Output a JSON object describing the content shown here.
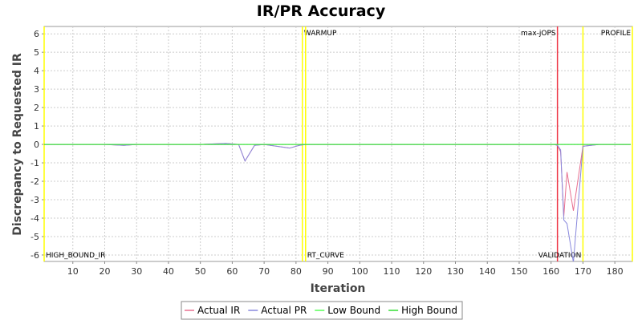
{
  "chart_data": {
    "type": "line",
    "title": "IR/PR Accuracy",
    "x_label": "Iteration",
    "y_label": "Discrepancy to Requested IR",
    "x": [
      1,
      10,
      20,
      26,
      30,
      40,
      50,
      58,
      62,
      64,
      67,
      70,
      78,
      81,
      83,
      100,
      140,
      161,
      162,
      163,
      164,
      165,
      167,
      170,
      175,
      185
    ],
    "series": [
      {
        "name": "Actual IR",
        "color": "#e87090",
        "values": [
          0,
          0,
          0,
          -0.05,
          0,
          0,
          0,
          0.05,
          0,
          -0.9,
          -0.05,
          0,
          -0.2,
          -0.05,
          0,
          0,
          0,
          0,
          -0.05,
          -0.4,
          -3.9,
          -1.5,
          -3.6,
          -0.1,
          0,
          0
        ]
      },
      {
        "name": "Actual PR",
        "color": "#8888dd",
        "values": [
          0,
          0,
          0,
          -0.05,
          0,
          0,
          0,
          0.05,
          0,
          -0.9,
          -0.05,
          0,
          -0.2,
          -0.05,
          0,
          0,
          0,
          0,
          -0.05,
          -0.3,
          -4.1,
          -4.3,
          -6.4,
          -0.1,
          0,
          0
        ]
      },
      {
        "name": "Low Bound",
        "color": "#55ff55",
        "values": [
          0,
          0,
          0,
          0,
          0,
          0,
          0,
          0,
          0,
          0,
          0,
          0,
          0,
          0,
          0,
          0,
          0,
          0,
          0,
          0,
          0,
          0,
          0,
          0,
          0,
          0
        ]
      },
      {
        "name": "High Bound",
        "color": "#33dd33",
        "values": [
          0,
          0,
          0,
          0,
          0,
          0,
          0,
          0,
          0,
          0,
          0,
          0,
          0,
          0,
          0,
          0,
          0,
          0,
          0,
          0,
          0,
          0,
          0,
          0,
          0,
          0
        ]
      }
    ],
    "markers": [
      {
        "x": 1,
        "color": "#ffff00",
        "label": "HIGH_BOUND_IR",
        "position": "bottom",
        "anchor": "start"
      },
      {
        "x": 82,
        "color": "#ffff00",
        "label": "WARMUP",
        "position": "top",
        "anchor": "start"
      },
      {
        "x": 83,
        "color": "#ffff00",
        "label": "RT_CURVE",
        "position": "bottom",
        "anchor": "start"
      },
      {
        "x": 162,
        "color": "#ee3344",
        "label": "max-jOPS",
        "position": "top",
        "anchor": "end"
      },
      {
        "x": 170,
        "color": "#ffff00",
        "label": "VALIDATION",
        "position": "bottom",
        "anchor": "end"
      },
      {
        "x": 185.5,
        "color": "#ffff00",
        "label": "PROFILE",
        "position": "top",
        "anchor": "end"
      }
    ],
    "xlim": [
      1,
      185.5
    ],
    "xticks": [
      10,
      20,
      30,
      40,
      50,
      60,
      70,
      80,
      90,
      100,
      110,
      120,
      130,
      140,
      150,
      160,
      170,
      180
    ],
    "ylim": [
      -6.35,
      6.4
    ],
    "yticks": [
      -6,
      -5,
      -4,
      -3,
      -2,
      -1,
      0,
      1,
      2,
      3,
      4,
      5,
      6
    ],
    "grid": true
  }
}
